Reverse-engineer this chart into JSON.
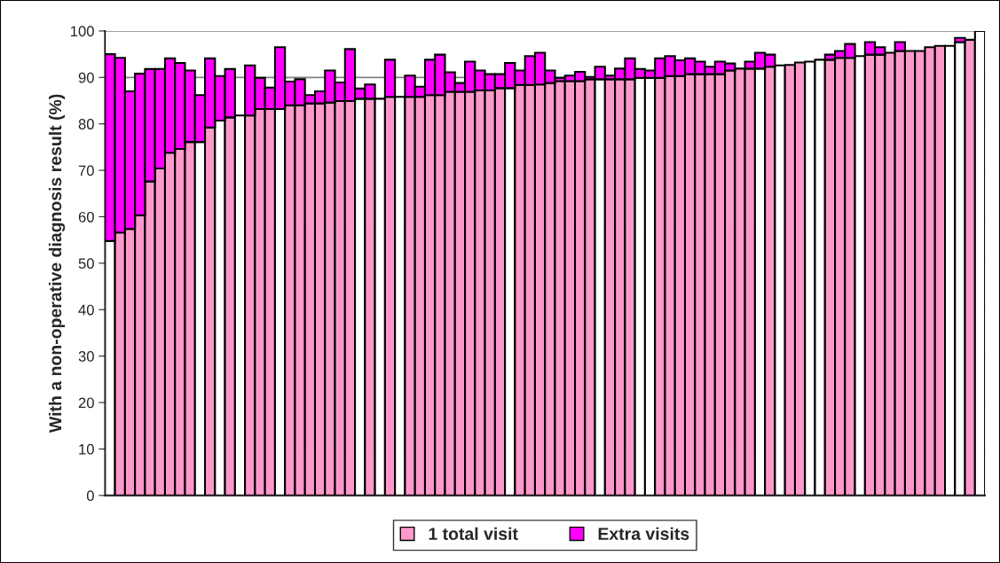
{
  "chart_data": {
    "type": "bar",
    "stacked": true,
    "ylabel": "With a non-operative diagnosis result (%)",
    "categories": [
      null,
      null,
      null,
      null,
      null,
      null,
      null,
      null,
      null,
      null,
      null,
      null,
      null,
      null,
      null,
      null,
      null,
      null,
      null,
      null,
      null,
      null,
      null,
      null,
      null,
      null,
      null,
      null,
      null,
      null,
      null,
      null,
      null,
      null,
      null,
      null,
      null,
      null,
      null,
      null,
      null,
      null,
      null,
      null,
      null,
      null,
      null,
      null,
      null,
      null,
      null,
      null,
      null,
      null,
      null,
      null,
      null,
      null,
      null,
      null,
      null,
      null,
      null,
      null,
      null,
      null,
      null,
      null,
      null,
      null,
      null,
      null,
      null,
      null,
      null,
      null,
      null,
      null,
      null,
      null,
      null,
      null,
      null,
      null,
      null,
      null,
      null,
      null
    ],
    "series": [
      {
        "name": "1 total visit",
        "color": "#ff99cc",
        "values": [
          54.8,
          56.6,
          57.4,
          60.3,
          67.6,
          70.4,
          73.8,
          74.6,
          76.1,
          76.1,
          79.2,
          80.7,
          81.4,
          81.8,
          81.8,
          83.2,
          83.2,
          83.2,
          84.0,
          84.0,
          84.4,
          84.4,
          84.6,
          84.9,
          84.9,
          85.4,
          85.4,
          85.4,
          85.8,
          85.8,
          85.8,
          85.8,
          86.2,
          86.2,
          86.9,
          86.9,
          86.9,
          87.2,
          87.2,
          87.7,
          87.7,
          88.4,
          88.4,
          88.5,
          88.8,
          89.2,
          89.2,
          89.2,
          89.6,
          89.6,
          89.6,
          89.6,
          89.6,
          89.9,
          89.9,
          89.9,
          90.3,
          90.3,
          90.7,
          90.7,
          90.7,
          90.7,
          91.5,
          91.9,
          91.9,
          91.9,
          92.3,
          92.6,
          92.7,
          93.2,
          93.4,
          93.8,
          93.8,
          94.2,
          94.2,
          94.6,
          94.9,
          94.9,
          95.3,
          95.7,
          95.7,
          95.7,
          96.5,
          96.8,
          96.8,
          97.6,
          98.1,
          100
        ],
        "colors": [
          "#ffffff",
          "#ff99cc",
          "#ff99cc",
          "#ff99cc",
          "#ff99cc",
          "#ff99cc",
          "#ff99cc",
          "#ff99cc",
          "#ff99cc",
          "#ffffff",
          "#ff99cc",
          "#ffffff",
          "#ff99cc",
          "#ffffff",
          "#ff99cc",
          "#ff99cc",
          "#ff99cc",
          "#ffffff",
          "#ff99cc",
          "#ff99cc",
          "#ff99cc",
          "#ff99cc",
          "#ff99cc",
          "#ff99cc",
          "#ff99cc",
          "#ffffff",
          "#ff99cc",
          "#ffffff",
          "#ff99cc",
          "#ffffff",
          "#ff99cc",
          "#ff99cc",
          "#ff99cc",
          "#ff99cc",
          "#ff99cc",
          "#ff99cc",
          "#ff99cc",
          "#ff99cc",
          "#ff99cc",
          "#ff99cc",
          "#ffffff",
          "#ff99cc",
          "#ff99cc",
          "#ff99cc",
          "#ff99cc",
          "#ff99cc",
          "#ff99cc",
          "#ff99cc",
          "#ff99cc",
          "#ffffff",
          "#ff99cc",
          "#ff99cc",
          "#ff99cc",
          "#ffffff",
          "#ffffff",
          "#ff99cc",
          "#ff99cc",
          "#ff99cc",
          "#ff99cc",
          "#ff99cc",
          "#ff99cc",
          "#ff99cc",
          "#ff99cc",
          "#ff99cc",
          "#ff99cc",
          "#ffffff",
          "#ff99cc",
          "#ffffff",
          "#ff99cc",
          "#ff99cc",
          "#ffffff",
          "#ffffff",
          "#ff99cc",
          "#ff99cc",
          "#ff99cc",
          "#ffffff",
          "#ff99cc",
          "#ff99cc",
          "#ff99cc",
          "#ff99cc",
          "#ff99cc",
          "#ff99cc",
          "#ff99cc",
          "#ff99cc",
          "#ffffff",
          "#ffffff",
          "#ff99cc",
          "#ffffff"
        ]
      },
      {
        "name": "Extra visits",
        "color": "#ff00ff",
        "values": [
          40.2,
          37.6,
          29.6,
          30.5,
          24.2,
          21.4,
          20.3,
          18.5,
          15.4,
          10.1,
          14.9,
          9.6,
          10.4,
          null,
          10.8,
          6.7,
          4.6,
          13.3,
          5.1,
          5.6,
          1.8,
          2.6,
          6.9,
          4.0,
          11.2,
          2.2,
          3.1,
          null,
          8.0,
          null,
          4.6,
          2.2,
          7.6,
          8.7,
          4.2,
          1.9,
          6.5,
          4.3,
          3.5,
          3.0,
          5.4,
          3.1,
          6.2,
          6.8,
          2.7,
          0.7,
          1.2,
          2.0,
          0.5,
          2.7,
          0.8,
          2.3,
          4.5,
          1.9,
          1.6,
          4.2,
          4.3,
          3.4,
          3.4,
          2.7,
          1.6,
          2.7,
          1.5,
          null,
          1.5,
          3.4,
          2.6,
          null,
          null,
          null,
          null,
          null,
          1.1,
          1.5,
          3.0,
          null,
          2.7,
          1.6,
          null,
          1.9,
          null,
          null,
          null,
          null,
          null,
          0.9,
          null,
          null
        ]
      }
    ],
    "ylim": [
      0,
      100
    ],
    "yticks": [
      0,
      10,
      20,
      30,
      40,
      50,
      60,
      70,
      80,
      90,
      100
    ],
    "grid": "y",
    "legend": "bottom"
  }
}
